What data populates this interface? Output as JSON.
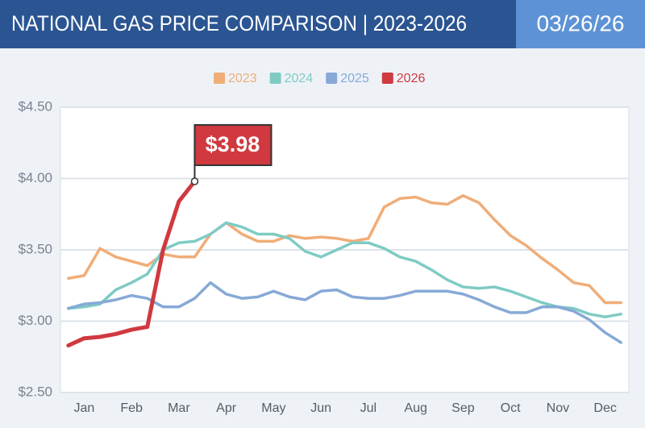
{
  "header": {
    "title": "NATIONAL GAS PRICE COMPARISON | 2023-2026",
    "date": "03/26/26"
  },
  "chart_data": {
    "type": "line",
    "categories": [
      null,
      "Jan",
      null,
      null,
      "Feb",
      null,
      null,
      "Mar",
      null,
      null,
      "Apr",
      null,
      null,
      "May",
      null,
      null,
      "Jun",
      null,
      null,
      "Jul",
      null,
      null,
      "Aug",
      null,
      null,
      "Sep",
      null,
      null,
      "Oct",
      null,
      null,
      "Nov",
      null,
      null,
      "Dec",
      null
    ],
    "ylim": [
      2.5,
      4.5
    ],
    "yticks": [
      {
        "value": 2.5,
        "label": "$2.50"
      },
      {
        "value": 3.0,
        "label": "$3.00"
      },
      {
        "value": 3.5,
        "label": "$3.50"
      },
      {
        "value": 4.0,
        "label": "$4.00"
      },
      {
        "value": 4.5,
        "label": "$4.50"
      }
    ],
    "grid": true,
    "series": [
      {
        "name": "2023",
        "color": "#f0ad78",
        "values": [
          3.3,
          3.32,
          3.51,
          3.45,
          3.42,
          3.39,
          3.47,
          3.45,
          3.45,
          3.61,
          3.69,
          3.61,
          3.56,
          3.56,
          3.6,
          3.58,
          3.59,
          3.58,
          3.56,
          3.58,
          3.8,
          3.86,
          3.87,
          3.83,
          3.82,
          3.88,
          3.83,
          3.71,
          3.6,
          3.53,
          3.44,
          3.36,
          3.27,
          3.25,
          3.13,
          3.13
        ]
      },
      {
        "name": "2024",
        "color": "#7fcbc4",
        "values": [
          3.09,
          3.1,
          3.12,
          3.22,
          3.27,
          3.33,
          3.5,
          3.55,
          3.56,
          3.61,
          3.69,
          3.66,
          3.61,
          3.61,
          3.58,
          3.49,
          3.45,
          3.5,
          3.55,
          3.55,
          3.51,
          3.45,
          3.42,
          3.36,
          3.29,
          3.24,
          3.23,
          3.24,
          3.21,
          3.17,
          3.13,
          3.1,
          3.09,
          3.05,
          3.03,
          3.05
        ]
      },
      {
        "name": "2025",
        "color": "#86a9d6",
        "values": [
          3.09,
          3.12,
          3.13,
          3.15,
          3.18,
          3.16,
          3.1,
          3.1,
          3.16,
          3.27,
          3.19,
          3.16,
          3.17,
          3.21,
          3.17,
          3.15,
          3.21,
          3.22,
          3.17,
          3.16,
          3.16,
          3.18,
          3.21,
          3.21,
          3.21,
          3.19,
          3.15,
          3.1,
          3.06,
          3.06,
          3.1,
          3.1,
          3.07,
          3.01,
          2.92,
          2.85
        ]
      },
      {
        "name": "2026",
        "color": "#d0393f",
        "values": [
          2.83,
          2.88,
          2.89,
          2.91,
          2.94,
          2.96,
          3.5,
          3.84,
          3.98,
          null,
          null,
          null,
          null,
          null,
          null,
          null,
          null,
          null,
          null,
          null,
          null,
          null,
          null,
          null,
          null,
          null,
          null,
          null,
          null,
          null,
          null,
          null,
          null,
          null,
          null,
          null
        ],
        "value_labels": [
          null,
          null,
          null,
          null,
          null,
          null,
          null,
          null,
          "$3.98",
          null,
          null,
          null,
          null,
          null,
          null,
          null,
          null,
          null,
          null,
          null,
          null,
          null,
          null,
          null,
          null,
          null,
          null,
          null,
          null,
          null,
          null,
          null,
          null,
          null,
          null,
          null
        ]
      }
    ]
  }
}
